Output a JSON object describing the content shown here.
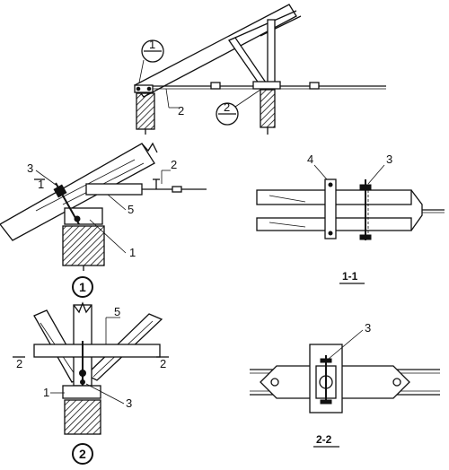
{
  "elevation": {
    "section_mark_1": "1",
    "section_mark_2": "2",
    "label_2": "2"
  },
  "detail_1": {
    "label_3": "3",
    "label_1_side": "1",
    "label_2": "2",
    "label_5": "5",
    "label_1": "1",
    "circle_number": "1"
  },
  "section_1_1": {
    "label_4": "4",
    "label_3": "3",
    "title": "1-1"
  },
  "detail_2": {
    "label_5": "5",
    "cut_left": "2",
    "cut_right": "2",
    "label_1": "1",
    "label_3": "3",
    "circle_number": "2"
  },
  "section_2_2": {
    "label_3": "3",
    "title": "2-2"
  }
}
